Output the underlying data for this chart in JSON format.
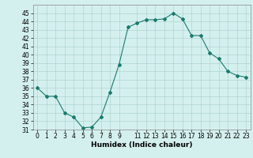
{
  "x": [
    0,
    1,
    2,
    3,
    4,
    5,
    6,
    7,
    8,
    9,
    10,
    11,
    12,
    13,
    14,
    15,
    16,
    17,
    18,
    19,
    20,
    21,
    22,
    23
  ],
  "y": [
    36,
    35,
    35,
    33,
    32.5,
    31.2,
    31.3,
    32.5,
    35.5,
    38.8,
    43.3,
    43.8,
    44.2,
    44.2,
    44.3,
    45.0,
    44.3,
    42.3,
    42.3,
    40.2,
    39.5,
    38.0,
    37.5,
    37.3
  ],
  "line_color": "#1a7a6e",
  "marker": "D",
  "marker_size": 2,
  "bg_color": "#d4f0ee",
  "grid_color": "#aed4d0",
  "xlabel": "Humidex (Indice chaleur)",
  "ylim": [
    31,
    46
  ],
  "xlim": [
    -0.5,
    23.5
  ],
  "yticks": [
    31,
    32,
    33,
    34,
    35,
    36,
    37,
    38,
    39,
    40,
    41,
    42,
    43,
    44,
    45
  ],
  "xticks": [
    0,
    1,
    2,
    3,
    4,
    5,
    6,
    7,
    8,
    9,
    11,
    12,
    13,
    14,
    15,
    16,
    17,
    18,
    19,
    20,
    21,
    22,
    23
  ],
  "label_fontsize": 6.5,
  "tick_fontsize": 5.5
}
